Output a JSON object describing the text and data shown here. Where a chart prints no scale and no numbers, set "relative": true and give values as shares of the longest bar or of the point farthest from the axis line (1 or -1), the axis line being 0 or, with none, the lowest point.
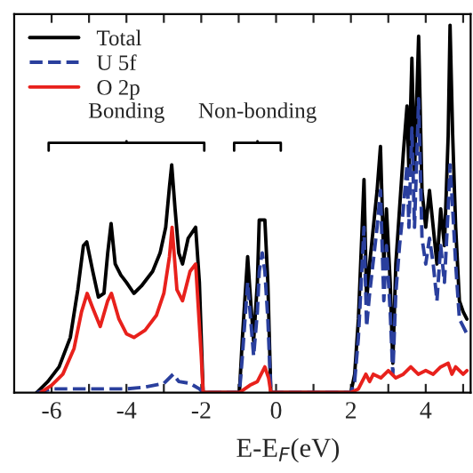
{
  "chart_data": {
    "type": "line",
    "relative": true,
    "xlabel": "E-E$_{F}$(eV)",
    "xlim": [
      -7,
      5.2
    ],
    "xticks": [
      -6,
      {
        "value": -5,
        "label": null
      },
      -4,
      {
        "value": -3,
        "label": null
      },
      -2,
      {
        "value": -1,
        "label": null
      },
      0,
      {
        "value": 1,
        "label": null
      },
      2,
      {
        "value": 3,
        "label": null
      },
      4,
      {
        "value": 5,
        "label": null
      }
    ],
    "tick_labels": "x",
    "legend": "top left",
    "grid": false,
    "annotations": [
      "Bonding",
      "Non-bonding"
    ],
    "series": [
      {
        "name": "Total",
        "color": "#000000",
        "line_style": "solid",
        "x": [
          -6.4,
          -6.1,
          -5.8,
          -5.5,
          -5.3,
          -5.15,
          -5.06,
          -4.9,
          -4.75,
          -4.6,
          -4.5,
          -4.41,
          -4.3,
          -4.15,
          -4.0,
          -3.8,
          -3.6,
          -3.3,
          -3.1,
          -2.95,
          -2.85,
          -2.79,
          -2.7,
          -2.6,
          -2.5,
          -2.35,
          -2.15,
          -2.05,
          -1.95,
          -0.98,
          -0.9,
          -0.76,
          -0.68,
          -0.6,
          -0.5,
          -0.45,
          -0.37,
          -0.3,
          -0.22,
          -0.14,
          2.0,
          2.1,
          2.2,
          2.3,
          2.35,
          2.42,
          2.5,
          2.6,
          2.7,
          2.79,
          2.88,
          2.95,
          3.05,
          3.12,
          3.2,
          3.3,
          3.4,
          3.5,
          3.55,
          3.63,
          3.7,
          3.81,
          3.9,
          4.0,
          4.1,
          4.2,
          4.3,
          4.4,
          4.5,
          4.6,
          4.65,
          4.72,
          4.8,
          4.9,
          5.0,
          5.1
        ],
        "values": [
          0,
          0.03,
          0.07,
          0.15,
          0.28,
          0.4,
          0.41,
          0.33,
          0.26,
          0.27,
          0.38,
          0.46,
          0.35,
          0.32,
          0.3,
          0.27,
          0.29,
          0.33,
          0.38,
          0.45,
          0.56,
          0.62,
          0.5,
          0.38,
          0.35,
          0.42,
          0.45,
          0.3,
          0,
          0,
          0.15,
          0.37,
          0.25,
          0.14,
          0.3,
          0.47,
          0.47,
          0.47,
          0.3,
          0,
          0,
          0.05,
          0.2,
          0.45,
          0.58,
          0.25,
          0.35,
          0.45,
          0.55,
          0.67,
          0.35,
          0.5,
          0.3,
          0.08,
          0.35,
          0.5,
          0.65,
          0.78,
          0.6,
          0.91,
          0.6,
          0.97,
          0.55,
          0.45,
          0.55,
          0.45,
          0.35,
          0.5,
          0.4,
          0.7,
          1.0,
          0.7,
          0.45,
          0.25,
          0.22,
          0.2
        ]
      },
      {
        "name": "U 5f",
        "color": "#2a3f9d",
        "line_style": "dashed",
        "x": [
          -6.4,
          -6.0,
          -5.5,
          -5.0,
          -4.5,
          -4.0,
          -3.5,
          -3.0,
          -2.75,
          -2.6,
          -2.3,
          -2.05,
          -1.95,
          -0.98,
          -0.9,
          -0.76,
          -0.68,
          -0.6,
          -0.5,
          -0.45,
          -0.37,
          -0.3,
          -0.22,
          -0.14,
          2.0,
          2.1,
          2.2,
          2.3,
          2.35,
          2.42,
          2.5,
          2.6,
          2.7,
          2.79,
          2.88,
          2.95,
          3.05,
          3.12,
          3.2,
          3.3,
          3.4,
          3.5,
          3.55,
          3.63,
          3.7,
          3.81,
          3.9,
          4.0,
          4.1,
          4.2,
          4.3,
          4.4,
          4.5,
          4.6,
          4.65,
          4.72,
          4.8,
          4.9,
          5.0,
          5.1
        ],
        "values": [
          0,
          0.01,
          0.01,
          0.01,
          0.01,
          0.01,
          0.015,
          0.025,
          0.05,
          0.03,
          0.025,
          0.01,
          0,
          0,
          0.1,
          0.3,
          0.2,
          0.1,
          0.22,
          0.33,
          0.38,
          0.33,
          0.2,
          0,
          0,
          0.03,
          0.15,
          0.35,
          0.45,
          0.18,
          0.27,
          0.36,
          0.45,
          0.55,
          0.25,
          0.4,
          0.22,
          0.05,
          0.27,
          0.4,
          0.5,
          0.62,
          0.45,
          0.72,
          0.45,
          0.8,
          0.42,
          0.35,
          0.42,
          0.35,
          0.25,
          0.4,
          0.3,
          0.5,
          0.62,
          0.5,
          0.35,
          0.2,
          0.18,
          0.16
        ]
      },
      {
        "name": "O 2p",
        "color": "#e8211c",
        "line_style": "solid",
        "x": [
          -6.3,
          -6.0,
          -5.7,
          -5.4,
          -5.2,
          -5.05,
          -4.9,
          -4.7,
          -4.5,
          -4.4,
          -4.2,
          -4.0,
          -3.8,
          -3.5,
          -3.2,
          -3.0,
          -2.85,
          -2.78,
          -2.65,
          -2.5,
          -2.3,
          -2.15,
          -2.0,
          -1.95,
          -0.98,
          -0.7,
          -0.5,
          -0.3,
          -0.2,
          -0.14,
          2.0,
          2.2,
          2.4,
          2.5,
          2.6,
          2.8,
          3.0,
          3.2,
          3.4,
          3.6,
          3.8,
          4.0,
          4.2,
          4.4,
          4.6,
          4.7,
          4.8,
          5.0,
          5.1
        ],
        "values": [
          0,
          0.02,
          0.05,
          0.12,
          0.22,
          0.27,
          0.23,
          0.18,
          0.25,
          0.27,
          0.2,
          0.16,
          0.15,
          0.17,
          0.21,
          0.27,
          0.37,
          0.45,
          0.28,
          0.25,
          0.33,
          0.35,
          0.1,
          0,
          0,
          0.02,
          0.03,
          0.07,
          0.04,
          0,
          0,
          0.01,
          0.05,
          0.03,
          0.05,
          0.04,
          0.06,
          0.04,
          0.05,
          0.07,
          0.05,
          0.06,
          0.05,
          0.07,
          0.08,
          0.05,
          0.07,
          0.05,
          0.06
        ]
      }
    ]
  }
}
